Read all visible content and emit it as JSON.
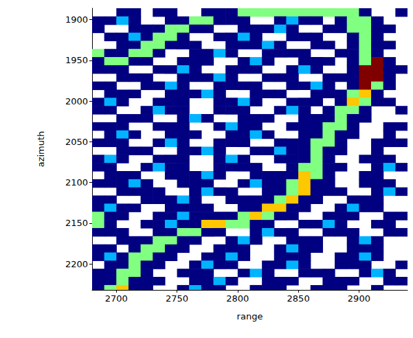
{
  "chart_data": {
    "type": "heatmap",
    "xlabel": "range",
    "ylabel": "azimuth",
    "xlim": [
      2680,
      2940
    ],
    "ylim": [
      2232,
      1886
    ],
    "xticks": [
      2700,
      2750,
      2800,
      2850,
      2900
    ],
    "yticks": [
      1900,
      1950,
      2000,
      2050,
      2100,
      2150,
      2200
    ],
    "grid": false,
    "zlim": [
      0,
      1
    ],
    "x": [
      2685,
      2695,
      2705,
      2715,
      2725,
      2735,
      2745,
      2755,
      2765,
      2775,
      2785,
      2795,
      2805,
      2815,
      2825,
      2835,
      2845,
      2855,
      2865,
      2875,
      2885,
      2895,
      2905,
      2915,
      2925,
      2935
    ],
    "y": [
      1891,
      1901,
      1911,
      1921,
      1931,
      1941,
      1951,
      1961,
      1971,
      1981,
      1991,
      2001,
      2011,
      2021,
      2031,
      2041,
      2051,
      2061,
      2071,
      2081,
      2091,
      2101,
      2111,
      2121,
      2131,
      2141,
      2151,
      2161,
      2171,
      2181,
      2191,
      2201,
      2211,
      2221,
      2231
    ],
    "z": [
      [
        null,
        null,
        0,
        0,
        null,
        0,
        0,
        null,
        null,
        0,
        0,
        0,
        0.5,
        0.5,
        0.5,
        0.5,
        0.5,
        0.5,
        0.5,
        0.5,
        0.5,
        0.5,
        0,
        null,
        null,
        0
      ],
      [
        0,
        0,
        0.3,
        0,
        null,
        null,
        0,
        0,
        0.5,
        0.5,
        0,
        0,
        0,
        null,
        null,
        0,
        0.3,
        0,
        0,
        null,
        0,
        0.5,
        0.5,
        0,
        null,
        null
      ],
      [
        0,
        null,
        null,
        0,
        0,
        0,
        0.5,
        0.5,
        0,
        0,
        null,
        null,
        0,
        0,
        0,
        0.3,
        0,
        null,
        null,
        0,
        0,
        0.5,
        0.5,
        0,
        0,
        null
      ],
      [
        null,
        0,
        0,
        0.3,
        0,
        0.5,
        0.5,
        0,
        null,
        null,
        0,
        0,
        0.3,
        0,
        null,
        null,
        0,
        0,
        0,
        null,
        null,
        0,
        0.5,
        0,
        null,
        null
      ],
      [
        null,
        null,
        0,
        0,
        0.5,
        0.5,
        0,
        0,
        0,
        null,
        null,
        0,
        0,
        0,
        0.3,
        0,
        null,
        null,
        0,
        0,
        null,
        0,
        0.5,
        0,
        0,
        null
      ],
      [
        0.5,
        0,
        0,
        0.5,
        0.5,
        0,
        null,
        null,
        0,
        0,
        0.3,
        0,
        null,
        null,
        0,
        0,
        0,
        0,
        null,
        null,
        0,
        0,
        0.5,
        0,
        null,
        null
      ],
      [
        0,
        0.5,
        0.5,
        0,
        0,
        null,
        null,
        0,
        0,
        0,
        null,
        null,
        0,
        0.3,
        0,
        null,
        null,
        0,
        0,
        0,
        null,
        0,
        0.5,
        1,
        0,
        null
      ],
      [
        0,
        0,
        0,
        null,
        null,
        0,
        0,
        0.3,
        0,
        null,
        null,
        0,
        0,
        0,
        null,
        null,
        0,
        0.3,
        0,
        null,
        null,
        0,
        1,
        1,
        0,
        0
      ],
      [
        null,
        null,
        0,
        0,
        0,
        null,
        null,
        0,
        0,
        0,
        0.3,
        0,
        null,
        null,
        0,
        0,
        0,
        null,
        null,
        0,
        0,
        0,
        1,
        1,
        0,
        null
      ],
      [
        0,
        0,
        null,
        null,
        0,
        0,
        0.3,
        0,
        null,
        null,
        0,
        0,
        0,
        0,
        null,
        null,
        0,
        0,
        0.3,
        0,
        null,
        0,
        1,
        0.5,
        0,
        null
      ],
      [
        null,
        0,
        0,
        0,
        null,
        null,
        0,
        0,
        0,
        0.3,
        0,
        null,
        null,
        0,
        0,
        0,
        null,
        null,
        0,
        0,
        0,
        0.5,
        0.68,
        0,
        null,
        null
      ],
      [
        0,
        0.3,
        0,
        null,
        null,
        0,
        0,
        0,
        null,
        null,
        0,
        0,
        0.3,
        0,
        null,
        null,
        0,
        0,
        0,
        null,
        0,
        0.68,
        0.5,
        0,
        0,
        null
      ],
      [
        0,
        0,
        null,
        null,
        0,
        0.3,
        0,
        0,
        null,
        null,
        0,
        0,
        0,
        null,
        null,
        0,
        0.3,
        0,
        null,
        0,
        0.5,
        0.5,
        0,
        null,
        null,
        0
      ],
      [
        null,
        null,
        0,
        0,
        0,
        null,
        null,
        0,
        0.3,
        0,
        null,
        null,
        0,
        0,
        0,
        null,
        null,
        0,
        0,
        0,
        0.5,
        0,
        0,
        null,
        null,
        null
      ],
      [
        0,
        0,
        0,
        null,
        null,
        0,
        0,
        0,
        null,
        null,
        0,
        0.3,
        0,
        0,
        null,
        null,
        0,
        0,
        0,
        0.5,
        0.5,
        0,
        null,
        null,
        0,
        0
      ],
      [
        null,
        0,
        0.3,
        0,
        null,
        null,
        0,
        0,
        0,
        null,
        null,
        0,
        0,
        0.3,
        0,
        null,
        null,
        0,
        0,
        0.5,
        0,
        0,
        null,
        null,
        0,
        null
      ],
      [
        0,
        0,
        0,
        null,
        null,
        0,
        0.3,
        0,
        null,
        null,
        0,
        0,
        0,
        null,
        null,
        0,
        0,
        0,
        0.5,
        0.5,
        0,
        null,
        null,
        0,
        0,
        0
      ],
      [
        null,
        null,
        0,
        0,
        0,
        null,
        null,
        0,
        0,
        0.3,
        0,
        null,
        null,
        0,
        0,
        0.3,
        0,
        0,
        0.5,
        0,
        0,
        null,
        null,
        0,
        null,
        null
      ],
      [
        0,
        0.3,
        0,
        null,
        null,
        0,
        0,
        0,
        null,
        null,
        0,
        0.3,
        0,
        null,
        null,
        0,
        0,
        0,
        0.5,
        0,
        null,
        null,
        0,
        0,
        0,
        null
      ],
      [
        0,
        0,
        null,
        null,
        0,
        0.3,
        0,
        0,
        null,
        null,
        0,
        0,
        0,
        0,
        null,
        null,
        0,
        0.5,
        0.5,
        0,
        0,
        null,
        null,
        0,
        0.3,
        0
      ],
      [
        null,
        0,
        0,
        0,
        null,
        null,
        0,
        0,
        0,
        0.3,
        0,
        null,
        null,
        0,
        0,
        0,
        0,
        0.68,
        0.5,
        0,
        null,
        null,
        0,
        0,
        null,
        null
      ],
      [
        0,
        0,
        0,
        0.3,
        0,
        null,
        null,
        0,
        0,
        0,
        null,
        null,
        0,
        0.3,
        0,
        0,
        0.5,
        0.68,
        0,
        0,
        null,
        null,
        0,
        0,
        0,
        null
      ],
      [
        null,
        null,
        0,
        0,
        0,
        0,
        null,
        null,
        0,
        0.3,
        0,
        0,
        null,
        null,
        0,
        0,
        0.5,
        0.68,
        0,
        0,
        0,
        null,
        null,
        0,
        0.3,
        0
      ],
      [
        0,
        0,
        null,
        null,
        0,
        0,
        0,
        0.3,
        0,
        null,
        null,
        0,
        0,
        0,
        0,
        0.5,
        0.68,
        0,
        0,
        null,
        null,
        0,
        0,
        0,
        null,
        null
      ],
      [
        0,
        0.3,
        0,
        0,
        null,
        null,
        0,
        0,
        0,
        0,
        null,
        null,
        0,
        0,
        0.68,
        0.68,
        0,
        0,
        null,
        null,
        0,
        0.3,
        0,
        0,
        null,
        null
      ],
      [
        0.5,
        0,
        0,
        null,
        null,
        0,
        0,
        0.3,
        0,
        0,
        0,
        0,
        0.5,
        0.68,
        0.5,
        0,
        0,
        null,
        null,
        0,
        0,
        0,
        null,
        null,
        0,
        0
      ],
      [
        0.5,
        0,
        null,
        null,
        0,
        0,
        0.3,
        0,
        0,
        0.68,
        0.68,
        0.5,
        0.5,
        0,
        0,
        null,
        null,
        0,
        0,
        0.3,
        0,
        null,
        null,
        0,
        0,
        null
      ],
      [
        0,
        0,
        0,
        null,
        null,
        0,
        0,
        0.5,
        0.5,
        0,
        0,
        null,
        null,
        0,
        0.3,
        0,
        0,
        null,
        null,
        0,
        0,
        0,
        null,
        null,
        0,
        0
      ],
      [
        null,
        null,
        0,
        0,
        0,
        0.5,
        0.5,
        0,
        0,
        null,
        null,
        0,
        0.3,
        0,
        null,
        null,
        0,
        0,
        0,
        null,
        null,
        0,
        0.3,
        0,
        null,
        null
      ],
      [
        0,
        0,
        null,
        0,
        0.5,
        0.5,
        0,
        0,
        null,
        null,
        0,
        0,
        0,
        null,
        null,
        0,
        0.3,
        0,
        0,
        null,
        null,
        0,
        0,
        0,
        null,
        null
      ],
      [
        0,
        0.3,
        0,
        0.5,
        0.5,
        0,
        0,
        null,
        null,
        0,
        0,
        0.3,
        0,
        null,
        null,
        0,
        0,
        0,
        null,
        null,
        0,
        0,
        0.3,
        0,
        null,
        null
      ],
      [
        null,
        0,
        0,
        0.5,
        0,
        0,
        null,
        null,
        0,
        0.3,
        0,
        0,
        null,
        null,
        0,
        0,
        0.3,
        0,
        null,
        null,
        0,
        0,
        0,
        null,
        null,
        0
      ],
      [
        0,
        0,
        0.5,
        0.5,
        0,
        null,
        null,
        0,
        0,
        0,
        null,
        null,
        0,
        0.3,
        0,
        null,
        null,
        0,
        0,
        0,
        null,
        null,
        0,
        0.3,
        0,
        null
      ],
      [
        0,
        0,
        0.5,
        0,
        0,
        0,
        null,
        null,
        0,
        0,
        0.3,
        0,
        null,
        null,
        0,
        0,
        0,
        null,
        null,
        0,
        0,
        0,
        null,
        null,
        0,
        0
      ],
      [
        0,
        0.5,
        0.68,
        0,
        0,
        null,
        null,
        0,
        0.3,
        0,
        0,
        null,
        null,
        0,
        0,
        0,
        null,
        null,
        0,
        0,
        0,
        null,
        null,
        0,
        null,
        null
      ]
    ]
  }
}
